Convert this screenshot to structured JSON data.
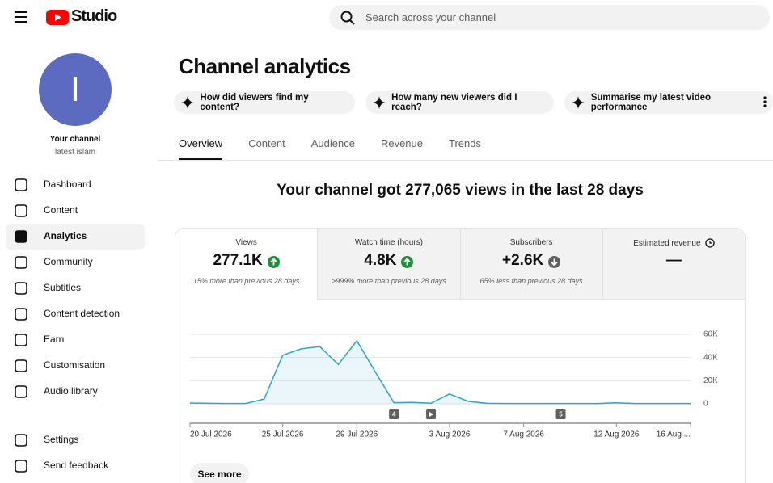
{
  "header": {
    "logo": "Studio",
    "search_placeholder": "Search across your channel"
  },
  "sidebar": {
    "avatar_letter": "I",
    "channel_label": "Your channel",
    "channel_name": "latest islam",
    "nav": [
      "Dashboard",
      "Content",
      "Analytics",
      "Community",
      "Subtitles",
      "Content detection",
      "Earn",
      "Customisation",
      "Audio library"
    ],
    "active_index": 2,
    "footer_nav": [
      "Settings",
      "Send feedback"
    ]
  },
  "page": {
    "title": "Channel analytics",
    "chips": [
      "How did viewers find my content?",
      "How many new viewers did I reach?",
      "Summarise my latest video performance"
    ],
    "tabs": [
      "Overview",
      "Content",
      "Audience",
      "Revenue",
      "Trends"
    ],
    "active_tab": 0,
    "headline": "Your channel got 277,065 views in the last 28 days",
    "cards": [
      {
        "label": "Views",
        "value": "277.1K",
        "trend": "up",
        "note": "15% more than previous 28 days"
      },
      {
        "label": "Watch time (hours)",
        "value": "4.8K",
        "trend": "up",
        "note": ">999% more than previous 28 days"
      },
      {
        "label": "Subscribers",
        "value": "+2.6K",
        "trend": "down",
        "note": "65% less than previous 28 days"
      },
      {
        "label": "Estimated revenue",
        "value": "—",
        "trend": "pending"
      }
    ],
    "active_card": 0,
    "see_more": "See more"
  },
  "chart_data": {
    "type": "line",
    "categories": [
      "20 Jul 2026",
      null,
      null,
      null,
      null,
      "25 Jul 2026",
      null,
      null,
      null,
      "29 Jul 2026",
      null,
      null,
      null,
      null,
      "3 Aug 2026",
      null,
      null,
      null,
      "7 Aug 2026",
      null,
      null,
      null,
      null,
      "12 Aug 2026",
      null,
      null,
      null,
      "16 Aug ..."
    ],
    "series": [
      {
        "name": "Views",
        "color": "#2ea3c9",
        "values": [
          700,
          400,
          300,
          300,
          4100,
          42000,
          47500,
          49500,
          34000,
          54500,
          27500,
          1000,
          1200,
          500,
          8500,
          2200,
          400,
          300,
          300,
          300,
          300,
          300,
          300,
          900,
          300,
          300,
          300,
          300
        ]
      }
    ],
    "ylim": [
      0,
      60000
    ],
    "yticks": [
      0,
      {
        "value": 20000,
        "label": "20K"
      },
      {
        "value": 40000,
        "label": "40K"
      },
      {
        "value": 60000,
        "label": "60K"
      }
    ],
    "grid": true,
    "annotations": [
      {
        "index": 11,
        "label": "4"
      },
      {
        "index": 13,
        "icon": "play"
      },
      {
        "index": 20,
        "label": "5"
      }
    ]
  }
}
